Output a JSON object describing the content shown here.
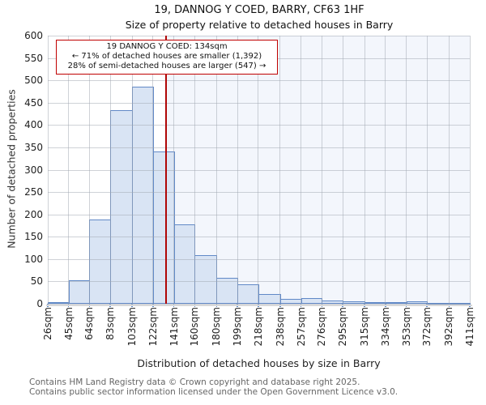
{
  "title": "19, DANNOG Y COED, BARRY, CF63 1HF",
  "subtitle": "Size of property relative to detached houses in Barry",
  "annotation": {
    "line1": "19 DANNOG Y COED: 134sqm",
    "line2": "← 71% of detached houses are smaller (1,392)",
    "line3": "28% of semi-detached houses are larger (547) →"
  },
  "chart_data": {
    "type": "bar",
    "title": "19, DANNOG Y COED, BARRY, CF63 1HF",
    "subtitle": "Size of property relative to detached houses in Barry",
    "xlabel": "Distribution of detached houses by size in Barry",
    "ylabel": "Number of detached properties",
    "bin_edges_sqm": [
      26,
      45,
      64,
      83,
      103,
      122,
      141,
      160,
      180,
      199,
      218,
      238,
      257,
      276,
      295,
      315,
      334,
      353,
      372,
      392,
      411
    ],
    "x_tick_labels": [
      "26sqm",
      "45sqm",
      "64sqm",
      "83sqm",
      "103sqm",
      "122sqm",
      "141sqm",
      "160sqm",
      "180sqm",
      "199sqm",
      "218sqm",
      "238sqm",
      "257sqm",
      "276sqm",
      "295sqm",
      "315sqm",
      "334sqm",
      "353sqm",
      "372sqm",
      "392sqm",
      "411sqm"
    ],
    "values": [
      4,
      52,
      189,
      433,
      485,
      341,
      178,
      108,
      58,
      44,
      22,
      10,
      13,
      7,
      6,
      4,
      3,
      5,
      2,
      2
    ],
    "y_ticks": [
      0,
      50,
      100,
      150,
      200,
      250,
      300,
      350,
      400,
      450,
      500,
      550,
      600
    ],
    "ylim": [
      0,
      600
    ],
    "xlim_sqm": [
      26,
      411
    ],
    "grid": true,
    "legend": "none",
    "marker": {
      "value_sqm": 134,
      "label": "19 DANNOG Y COED: 134sqm"
    },
    "colors": {
      "bar_fill": "#d9e4f4",
      "bar_edge": "#6189c7",
      "shade_right_of_marker": "#f3f6fc",
      "gridline": "rgba(160,165,175,0.5)",
      "marker_line": "#b00606",
      "annotation_border": "#c00000",
      "tick_mark": "#5b87c5"
    }
  },
  "footer": {
    "line1": "Contains HM Land Registry data © Crown copyright and database right 2025.",
    "line2": "Contains public sector information licensed under the Open Government Licence v3.0."
  }
}
